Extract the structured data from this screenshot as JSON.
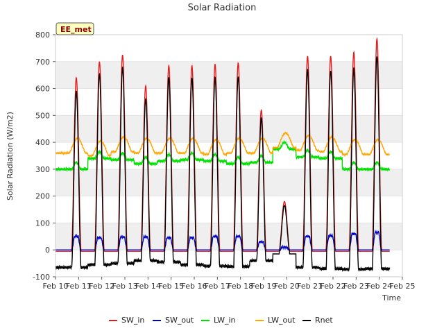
{
  "chart_data": {
    "type": "line",
    "title": "Solar Radiation",
    "xlabel": "Time",
    "ylabel": "Solar Radiation (W/m2)",
    "site_label": "EE_met",
    "ylim": [
      -100,
      800
    ],
    "yticks": [
      -100,
      0,
      100,
      200,
      300,
      400,
      500,
      600,
      700,
      800
    ],
    "xlim": [
      10,
      25
    ],
    "xticks": [
      10,
      11,
      12,
      13,
      14,
      15,
      16,
      17,
      18,
      19,
      20,
      21,
      22,
      23,
      24,
      25
    ],
    "xtick_labels": [
      "Feb 10",
      "Feb 11",
      "Feb 12",
      "Feb 13",
      "Feb 14",
      "Feb 15",
      "Feb 16",
      "Feb 17",
      "Feb 18",
      "Feb 19",
      "Feb 20",
      "Feb 21",
      "Feb 22",
      "Feb 23",
      "Feb 24",
      "Feb 25"
    ],
    "grid": "horizontal alternating bands",
    "legend_position": "bottom",
    "colors": {
      "SW_in": "#e41a1c",
      "SW_out": "#0000cc",
      "LW_in": "#00e000",
      "LW_out": "#ffa500",
      "Rnet": "#000000",
      "band": "#efefef"
    },
    "daily": {
      "days": [
        10.9,
        11.9,
        12.9,
        13.9,
        14.9,
        15.9,
        16.9,
        17.9,
        18.9,
        19.9,
        20.9,
        21.9,
        22.9,
        23.9
      ],
      "sw_in_peak": [
        640,
        700,
        725,
        610,
        685,
        685,
        690,
        695,
        520,
        180,
        720,
        720,
        735,
        785
      ],
      "sw_out_peak": [
        50,
        45,
        48,
        48,
        45,
        45,
        50,
        50,
        30,
        10,
        50,
        52,
        60,
        65
      ],
      "rnet_night": [
        -65,
        -55,
        -50,
        -40,
        -45,
        -55,
        -60,
        -62,
        -40,
        -5,
        -65,
        -70,
        -72,
        -70
      ],
      "lw_in_base": [
        300,
        340,
        335,
        320,
        330,
        335,
        330,
        320,
        325,
        375,
        345,
        340,
        300,
        300
      ],
      "lw_out_base": [
        360,
        350,
        365,
        360,
        360,
        360,
        355,
        360,
        360,
        380,
        370,
        365,
        355,
        355
      ]
    },
    "series": [
      {
        "name": "SW_in"
      },
      {
        "name": "SW_out"
      },
      {
        "name": "LW_in"
      },
      {
        "name": "LW_out"
      },
      {
        "name": "Rnet"
      }
    ]
  }
}
